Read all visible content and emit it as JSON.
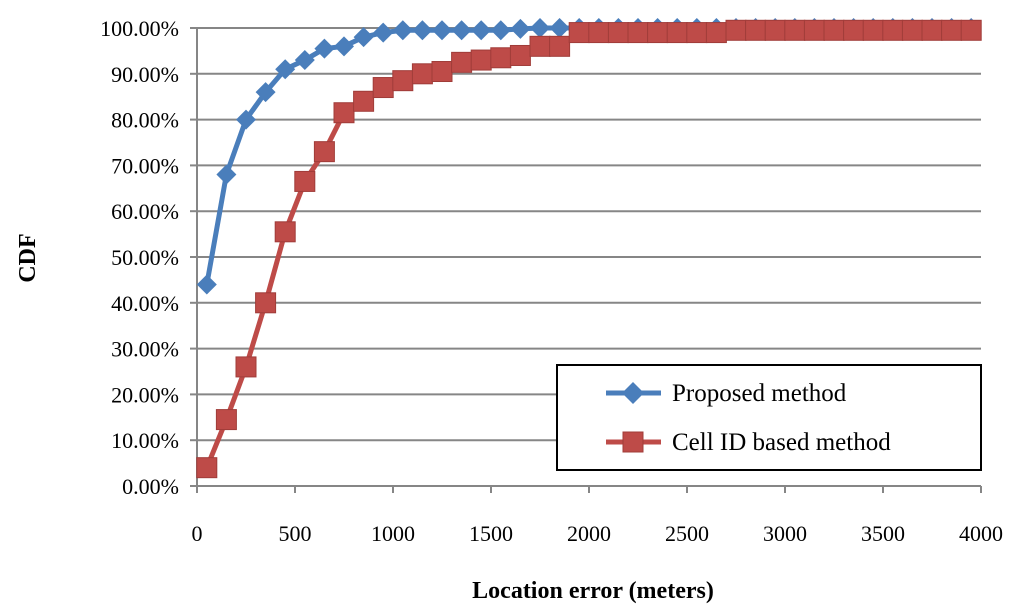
{
  "chart_data": {
    "type": "line",
    "xlabel": "Location error (meters)",
    "ylabel": "CDF",
    "xlim": [
      0,
      4000
    ],
    "ylim": [
      0,
      100
    ],
    "x_ticks": [
      0,
      500,
      1000,
      1500,
      2000,
      2500,
      3000,
      3500,
      4000
    ],
    "x_tick_labels": [
      "0",
      "500",
      "1000",
      "1500",
      "2000",
      "2500",
      "3000",
      "3500",
      "4000"
    ],
    "y_ticks": [
      0,
      10,
      20,
      30,
      40,
      50,
      60,
      70,
      80,
      90,
      100
    ],
    "y_tick_labels": [
      "0.00%",
      "10.00%",
      "20.00%",
      "30.00%",
      "40.00%",
      "50.00%",
      "60.00%",
      "70.00%",
      "80.00%",
      "90.00%",
      "100.00%"
    ],
    "grid": "horizontal",
    "legend_position": "bottom-right",
    "x": [
      50,
      150,
      250,
      350,
      450,
      550,
      650,
      750,
      850,
      950,
      1050,
      1150,
      1250,
      1350,
      1450,
      1550,
      1650,
      1750,
      1850,
      1950,
      2050,
      2150,
      2250,
      2350,
      2450,
      2550,
      2650,
      2750,
      2850,
      2950,
      3050,
      3150,
      3250,
      3350,
      3450,
      3550,
      3650,
      3750,
      3850,
      3950
    ],
    "series": [
      {
        "name": "Proposed method",
        "color": "#4a7ebb",
        "marker": "diamond",
        "values": [
          44,
          68,
          80,
          86,
          91,
          93,
          95.5,
          96,
          98,
          99,
          99.5,
          99.5,
          99.5,
          99.5,
          99.5,
          99.5,
          99.8,
          100,
          100,
          100,
          100,
          100,
          100,
          100,
          100,
          100,
          100,
          100,
          100,
          100,
          100,
          100,
          100,
          100,
          100,
          100,
          100,
          100,
          100,
          100
        ]
      },
      {
        "name": "Cell ID based method",
        "color": "#be4b48",
        "marker": "square",
        "values": [
          4,
          14.5,
          26,
          40,
          55.5,
          66.5,
          73,
          81.5,
          84,
          87,
          88.5,
          90,
          90.5,
          92.5,
          93,
          93.5,
          94,
          96,
          96,
          99,
          99,
          99,
          99,
          99,
          99,
          99,
          99,
          99.5,
          99.5,
          99.5,
          99.5,
          99.5,
          99.5,
          99.5,
          99.5,
          99.5,
          99.5,
          99.5,
          99.5,
          99.5
        ]
      }
    ]
  }
}
